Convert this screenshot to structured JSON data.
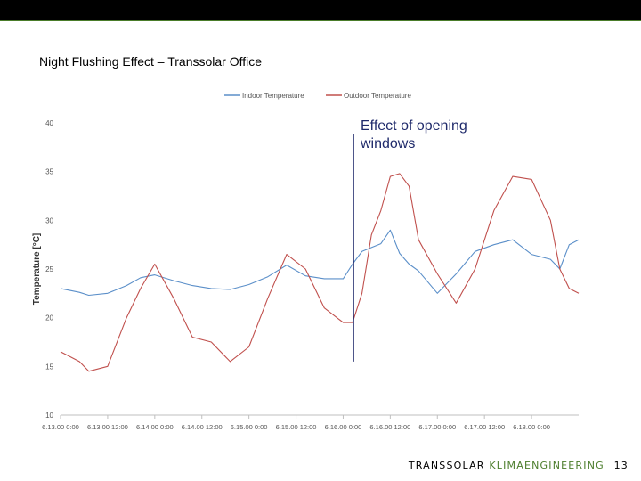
{
  "slide": {
    "title": "Night Flushing Effect – Transsolar Office",
    "annotation_line1": "Effect of opening",
    "annotation_line2": "windows",
    "footer_brand": "TRANSSOLAR",
    "footer_accent": "KLIMAENGINEERING",
    "page_number": "13",
    "colors": {
      "top_bar": "#000000",
      "accent": "#4a7c2a",
      "annotation": "#1f2a6b"
    }
  },
  "chart_data": {
    "type": "line",
    "title": "",
    "xlabel": "",
    "ylabel": "Temperature [°C]",
    "ylim": [
      10,
      40
    ],
    "yticks": [
      10,
      15,
      20,
      25,
      30,
      35,
      40
    ],
    "xlim": [
      0,
      5.5
    ],
    "xtick_labels": [
      "6.13.00 0:00",
      "6.13.00 12:00",
      "6.14.00 0:00",
      "6.14.00 12:00",
      "6.15.00 0:00",
      "6.15.00 12:00",
      "6.16.00 0:00",
      "6.16.00 12:00",
      "6.17.00 0:00",
      "6.17.00 12:00",
      "6.18.00 0:00"
    ],
    "legend_position": "top",
    "grid": false,
    "annotation_x": 3.11,
    "series": [
      {
        "name": "Indoor Temperature",
        "color": "#5b8fc9",
        "x": [
          0,
          0.2,
          0.3,
          0.5,
          0.7,
          0.85,
          1,
          1.2,
          1.4,
          1.6,
          1.8,
          2,
          2.2,
          2.4,
          2.6,
          2.8,
          3,
          3.1,
          3.2,
          3.3,
          3.4,
          3.5,
          3.6,
          3.7,
          3.8,
          4,
          4.2,
          4.4,
          4.6,
          4.8,
          5,
          5.2,
          5.3,
          5.4,
          5.5
        ],
        "y": [
          23,
          22.6,
          22.3,
          22.5,
          23.3,
          24.1,
          24.4,
          23.8,
          23.3,
          23.0,
          22.9,
          23.4,
          24.2,
          25.4,
          24.3,
          24.0,
          24.0,
          25.5,
          26.8,
          27.2,
          27.6,
          29.0,
          26.6,
          25.5,
          24.8,
          22.5,
          24.5,
          26.8,
          27.5,
          28.0,
          26.5,
          26.0,
          25.0,
          27.5,
          28.0
        ]
      },
      {
        "name": "Outdoor Temperature",
        "color": "#c0504d",
        "x": [
          0,
          0.2,
          0.3,
          0.5,
          0.7,
          0.85,
          1,
          1.2,
          1.4,
          1.6,
          1.8,
          2,
          2.2,
          2.4,
          2.6,
          2.8,
          3,
          3.1,
          3.2,
          3.3,
          3.4,
          3.5,
          3.6,
          3.7,
          3.8,
          4,
          4.2,
          4.4,
          4.6,
          4.8,
          5,
          5.2,
          5.3,
          5.4,
          5.5
        ],
        "y": [
          16.5,
          15.5,
          14.5,
          15.0,
          20.0,
          23.0,
          25.5,
          22.0,
          18.0,
          17.5,
          15.5,
          17.0,
          22.0,
          26.5,
          25.0,
          21.0,
          19.5,
          19.5,
          22.5,
          28.5,
          31.0,
          34.5,
          34.8,
          33.5,
          28.0,
          24.5,
          21.5,
          25.0,
          31.0,
          34.5,
          34.2,
          30.0,
          25.0,
          23.0,
          22.5
        ]
      }
    ]
  }
}
